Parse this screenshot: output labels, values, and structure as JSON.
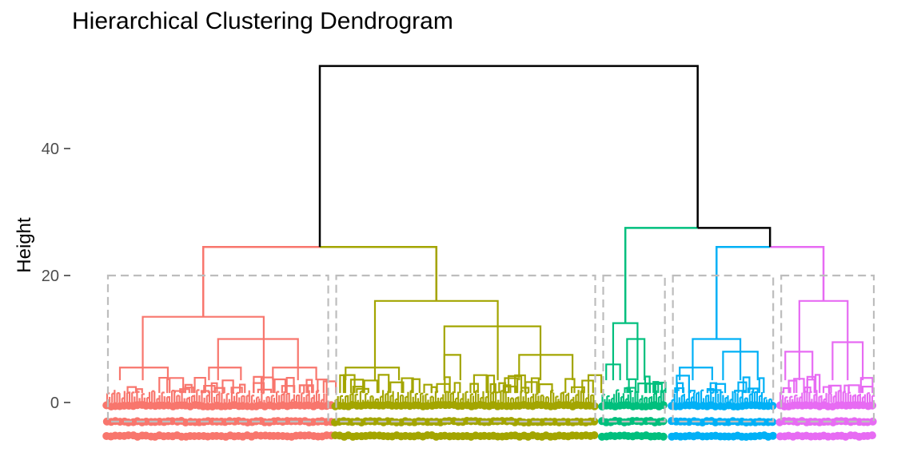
{
  "chart_data": {
    "type": "dendrogram",
    "title": "Hierarchical Clustering Dendrogram",
    "xlabel": "",
    "ylabel": "Height",
    "ylim": [
      -6,
      57
    ],
    "yticks": [
      0,
      20,
      40
    ],
    "cut_height": 20,
    "n_clusters": 5,
    "root": {
      "height": 53,
      "color": "#000000",
      "left": {
        "height": 24.5,
        "color": "#000000",
        "children": [
          {
            "name": "cluster-1",
            "color": "#F8766D",
            "height": 24.5,
            "sub_merges": [
              {
                "height": 13.5,
                "span": [
                  0.17,
                  0.7
                ]
              },
              {
                "height": 10,
                "span": [
                  0.5,
                  0.85
                ]
              },
              {
                "height": 5.5,
                "span": [
                  0.07,
                  0.28
                ]
              },
              {
                "height": 5.5,
                "span": [
                  0.46,
                  0.6
                ]
              },
              {
                "height": 5.5,
                "span": [
                  0.74,
                  0.93
                ]
              }
            ]
          },
          {
            "name": "cluster-2",
            "color": "#A3A500",
            "height": 24.5,
            "sub_merges": [
              {
                "height": 16,
                "span": [
                  0.16,
                  0.62
                ]
              },
              {
                "height": 12,
                "span": [
                  0.42,
                  0.78
                ]
              },
              {
                "height": 7.5,
                "span": [
                  0.42,
                  0.48
                ]
              },
              {
                "height": 7.5,
                "span": [
                  0.7,
                  0.9
                ]
              },
              {
                "height": 5.5,
                "span": [
                  0.05,
                  0.25
                ]
              }
            ]
          }
        ]
      },
      "right": {
        "height": 27.5,
        "color": "#000000",
        "children": [
          {
            "name": "cluster-3",
            "color": "#00BF7D",
            "height": 27.5,
            "sub_merges": [
              {
                "height": 12.5,
                "span": [
                  0.2,
                  0.55
                ]
              },
              {
                "height": 10,
                "span": [
                  0.4,
                  0.65
                ]
              },
              {
                "height": 6,
                "span": [
                  0.1,
                  0.3
                ]
              }
            ]
          },
          {
            "name": "cluster-4",
            "color": "#00B0F6",
            "height": 24.5,
            "sub_merges": [
              {
                "height": 10,
                "span": [
                  0.22,
                  0.66
                ]
              },
              {
                "height": 8,
                "span": [
                  0.5,
                  0.82
                ]
              },
              {
                "height": 5.5,
                "span": [
                  0.1,
                  0.4
                ]
              }
            ]
          },
          {
            "name": "cluster-5",
            "color": "#E76BF3",
            "height": 24.5,
            "sub_merges": [
              {
                "height": 16,
                "span": [
                  0.22,
                  0.7
                ]
              },
              {
                "height": 9.5,
                "span": [
                  0.55,
                  0.85
                ]
              },
              {
                "height": 8,
                "span": [
                  0.08,
                  0.35
                ]
              }
            ]
          }
        ]
      }
    },
    "cluster_leaf_share": [
      0.295,
      0.345,
      0.09,
      0.14,
      0.13
    ]
  }
}
